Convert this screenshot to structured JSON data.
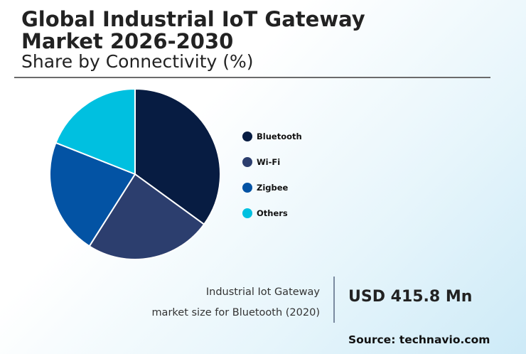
{
  "title_line1": "Global Industrial IoT Gateway",
  "title_line2": "Market 2026-2030",
  "subtitle": "Share by Connectivity (%)",
  "chart_data": {
    "type": "pie",
    "categories": [
      "Bluetooth",
      "Wi-Fi",
      "Zigbee",
      "Others"
    ],
    "values": [
      35,
      24,
      22,
      19
    ],
    "colors": [
      "#071c42",
      "#2c3e6e",
      "#0353a4",
      "#00c0e0"
    ],
    "legend_position": "right",
    "start_angle": "top, clockwise"
  },
  "stat": {
    "label_line1": "Industrial Iot Gateway",
    "label_line2": "market size for Bluetooth (2020)",
    "value": "USD 415.8 Mn"
  },
  "source": "Source: technavio.com"
}
